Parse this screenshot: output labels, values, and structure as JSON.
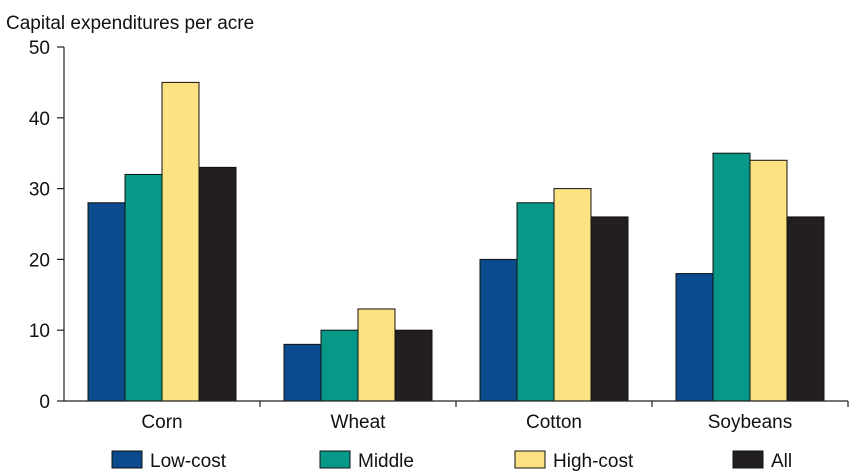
{
  "chart_data": {
    "type": "bar",
    "title": "",
    "xlabel": "",
    "ylabel": "Capital expenditures per acre",
    "ylim": [
      0,
      50
    ],
    "yticks": [
      0,
      10,
      20,
      30,
      40,
      50
    ],
    "grid": false,
    "legend_position": "bottom",
    "categories": [
      "Corn",
      "Wheat",
      "Cotton",
      "Soybeans"
    ],
    "series": [
      {
        "name": "Low-cost",
        "color": "#0b4a8c",
        "values": [
          28,
          8,
          20,
          18
        ]
      },
      {
        "name": "Middle",
        "color": "#079888",
        "values": [
          32,
          10,
          28,
          35
        ]
      },
      {
        "name": "High-cost",
        "color": "#fde283",
        "values": [
          45,
          13,
          30,
          34
        ]
      },
      {
        "name": "All",
        "color": "#231f20",
        "values": [
          33,
          10,
          26,
          26
        ]
      }
    ]
  }
}
